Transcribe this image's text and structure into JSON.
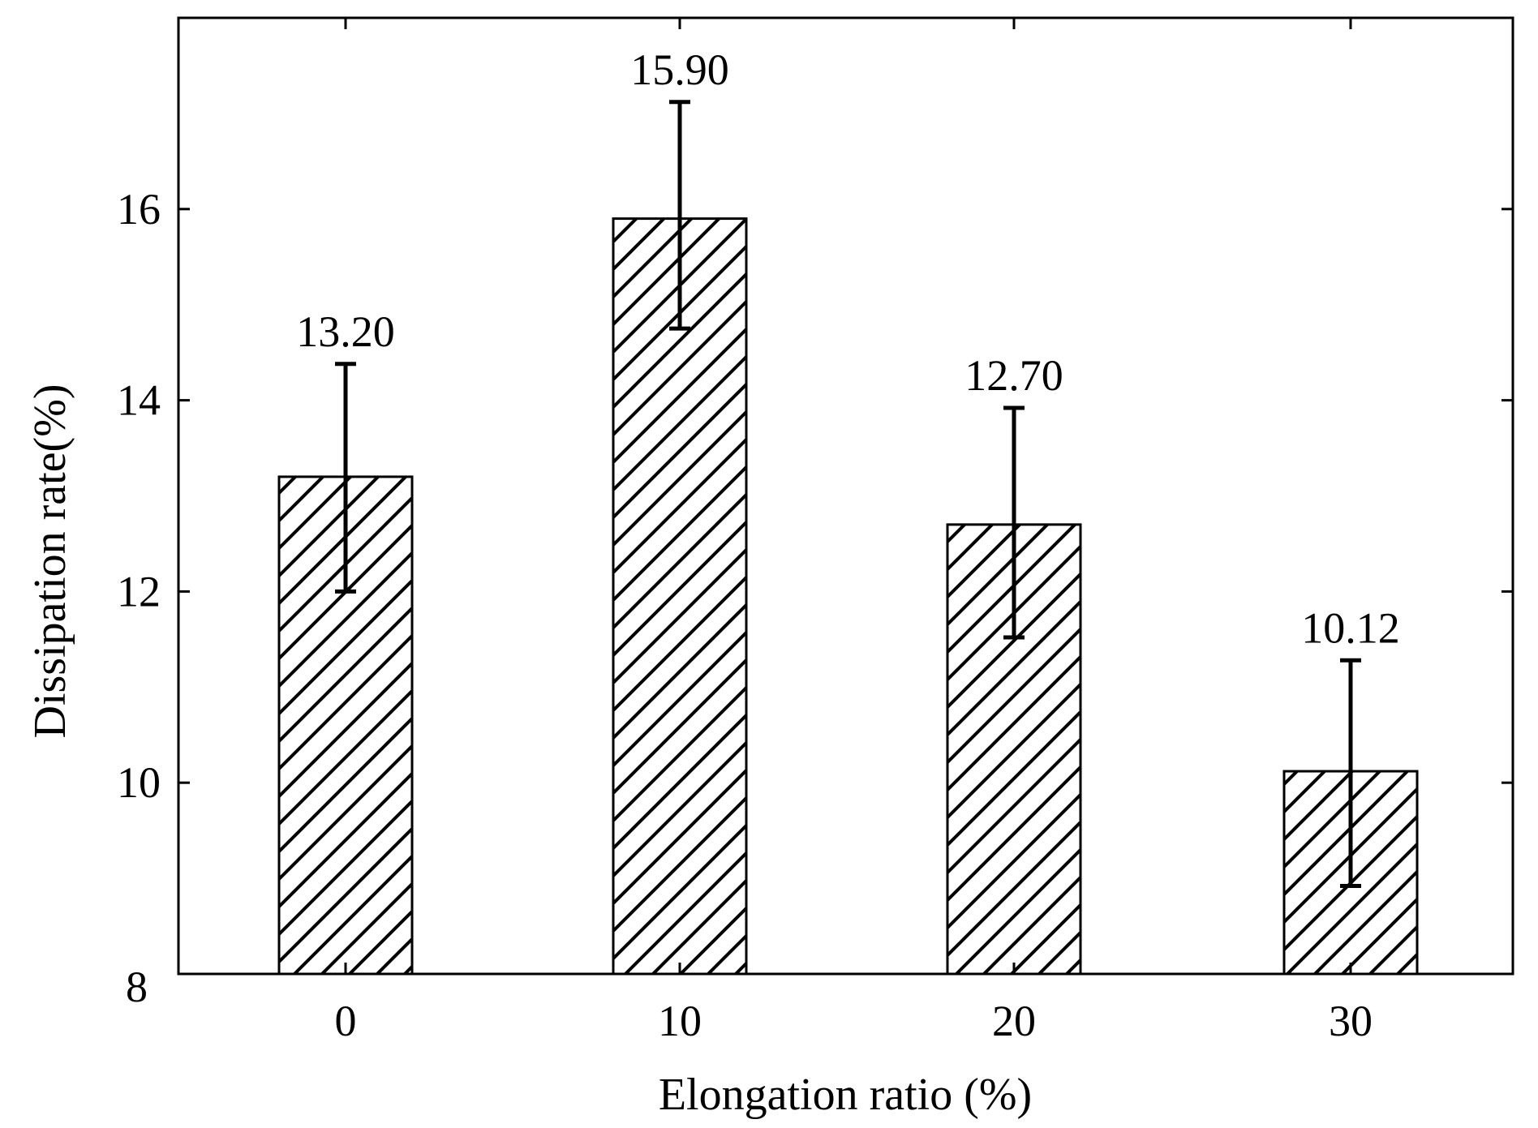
{
  "chart_data": {
    "type": "bar",
    "xlabel": "Elongation ratio (%)",
    "ylabel": "Dissipation rate(%)",
    "categories": [
      "0",
      "10",
      "20",
      "30"
    ],
    "values": [
      13.2,
      15.9,
      12.7,
      10.12
    ],
    "data_labels": [
      "13.20",
      "15.90",
      "12.70",
      "10.12"
    ],
    "error_bars": [
      {
        "low": 12.0,
        "high": 14.38
      },
      {
        "low": 14.75,
        "high": 17.12
      },
      {
        "low": 11.52,
        "high": 13.92
      },
      {
        "low": 8.92,
        "high": 11.28
      }
    ],
    "ylim": [
      8,
      18
    ],
    "yticks": [
      8,
      10,
      12,
      14,
      16
    ],
    "ytick_labels": [
      "8",
      "10",
      "12",
      "14",
      "16"
    ],
    "bar_fill": "hatched diagonal",
    "bar_color": "#000000",
    "background": "#ffffff",
    "grid": false,
    "legend": "none"
  }
}
